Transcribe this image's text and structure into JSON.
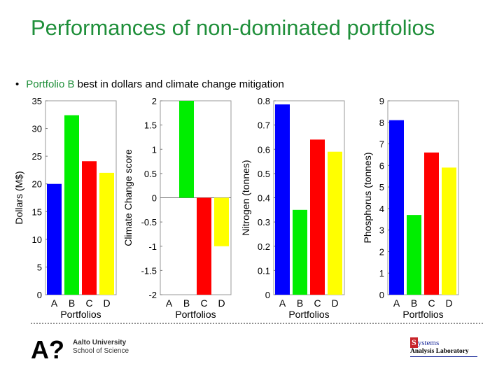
{
  "slide": {
    "title": "Performances of non-dominated portfolios",
    "bullet": {
      "symbol": "•",
      "highlight": "Portfolio B",
      "rest": " best in dollars and climate change mitigation"
    }
  },
  "footer": {
    "aalto_logo_text": "A?",
    "aalto_line1": "Aalto University",
    "aalto_line2": "School of Science",
    "sal_s": "S",
    "sal_line1": "ystems",
    "sal_line2": "Analysis Laboratory"
  },
  "colors": {
    "A": "#0000ff",
    "B": "#00ee00",
    "C": "#ff0000",
    "D": "#ffff00",
    "title": "#1f8f3a"
  },
  "chart_data": [
    {
      "type": "bar",
      "ylabel": "Dollars (M$)",
      "xlabel": "Portfolios",
      "categories": [
        "A",
        "B",
        "C",
        "D"
      ],
      "values": [
        20,
        32.4,
        24.1,
        22
      ],
      "ylim": [
        0,
        35
      ],
      "yticks": [
        0,
        5,
        10,
        15,
        20,
        25,
        30,
        35
      ]
    },
    {
      "type": "bar",
      "ylabel": "Climate Change score",
      "xlabel": "Portfolios",
      "categories": [
        "A",
        "B",
        "C",
        "D"
      ],
      "values": [
        0,
        2,
        -2,
        -1
      ],
      "ylim": [
        -2,
        2
      ],
      "yticks": [
        "-2",
        "-1.5",
        "-1",
        "-0.5",
        "0",
        "0.5",
        "1",
        "1.5",
        "2"
      ]
    },
    {
      "type": "bar",
      "ylabel": "Nitrogen (tonnes)",
      "xlabel": "Portfolios",
      "categories": [
        "A",
        "B",
        "C",
        "D"
      ],
      "values": [
        0.785,
        0.35,
        0.64,
        0.59
      ],
      "ylim": [
        0,
        0.8
      ],
      "yticks": [
        "0",
        "0.1",
        "0.2",
        "0.3",
        "0.4",
        "0.5",
        "0.6",
        "0.7",
        "0.8"
      ]
    },
    {
      "type": "bar",
      "ylabel": "Phosphorus (tonnes)",
      "xlabel": "Portfolios",
      "categories": [
        "A",
        "B",
        "C",
        "D"
      ],
      "values": [
        8.1,
        3.7,
        6.6,
        5.9
      ],
      "ylim": [
        0,
        9
      ],
      "yticks": [
        0,
        1,
        2,
        3,
        4,
        5,
        6,
        7,
        8,
        9
      ]
    }
  ]
}
